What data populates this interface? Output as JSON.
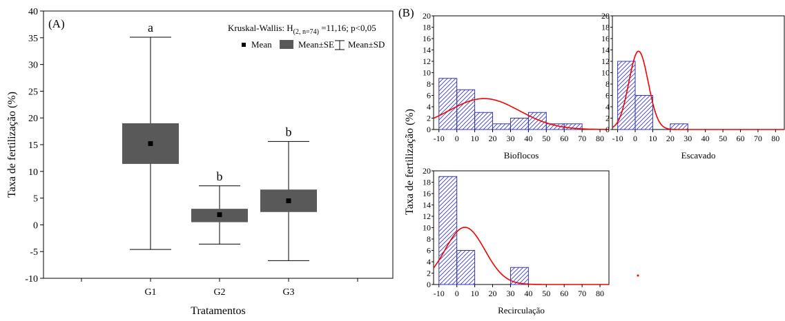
{
  "chart_data": [
    {
      "type": "box",
      "panel_label": "(A)",
      "ylabel": "Taxa de fertilização (%)",
      "xlabel": "Tratamentos",
      "ylim": [
        -10,
        40
      ],
      "yticks": [
        -10,
        -5,
        0,
        5,
        10,
        15,
        20,
        25,
        30,
        35,
        40
      ],
      "grid": false,
      "stat_text": {
        "prefix": "Kruskal-Wallis: H",
        "subscript": "(2, n=74)",
        "suffix": " =11,16; p<0,05"
      },
      "legend": {
        "placement": "top-right",
        "mean": "Mean",
        "se": "Mean±SE",
        "sd": "Mean±SD"
      },
      "box_color": "#595959",
      "categories": [
        "G1",
        "G2",
        "G3"
      ],
      "groups": [
        {
          "name": "G1",
          "mean": 15.2,
          "se_low": 11.4,
          "se_high": 19.0,
          "sd_low": -4.6,
          "sd_high": 35.1,
          "letter": "a"
        },
        {
          "name": "G2",
          "mean": 1.9,
          "se_low": 0.5,
          "se_high": 3.0,
          "sd_low": -3.6,
          "sd_high": 7.3,
          "letter": "b"
        },
        {
          "name": "G3",
          "mean": 4.5,
          "se_low": 2.4,
          "se_high": 6.6,
          "sd_low": -6.7,
          "sd_high": 15.6,
          "letter": "b"
        }
      ]
    },
    {
      "type": "histogram",
      "panel_label": "(B)",
      "ylabel": "Taxa de fertilização (%)",
      "xticks": [
        -10,
        0,
        10,
        20,
        30,
        40,
        50,
        60,
        70,
        80
      ],
      "xlim": [
        -13,
        85
      ],
      "ylim": [
        0,
        20
      ],
      "yticks": [
        0,
        2,
        4,
        6,
        8,
        10,
        12,
        14,
        16,
        18,
        20
      ],
      "bin_width": 10,
      "bar_color": "#3333bb",
      "curve_color": "#ee0000",
      "panels": [
        {
          "title": "Bioflocos",
          "bins": [
            {
              "x0": -10,
              "count": 9
            },
            {
              "x0": 0,
              "count": 7
            },
            {
              "x0": 10,
              "count": 3
            },
            {
              "x0": 20,
              "count": 1
            },
            {
              "x0": 30,
              "count": 2
            },
            {
              "x0": 40,
              "count": 3
            },
            {
              "x0": 50,
              "count": 1
            },
            {
              "x0": 60,
              "count": 1
            }
          ],
          "curve": {
            "mean": 15.2,
            "sd": 19.8,
            "n": 27
          }
        },
        {
          "title": "Escavado",
          "bins": [
            {
              "x0": -10,
              "count": 12
            },
            {
              "x0": 0,
              "count": 6
            },
            {
              "x0": 20,
              "count": 1
            }
          ],
          "curve": {
            "mean": 1.9,
            "sd": 5.5,
            "n": 19
          }
        },
        {
          "title": "Recirculação",
          "bins": [
            {
              "x0": -10,
              "count": 19
            },
            {
              "x0": 0,
              "count": 6
            },
            {
              "x0": 30,
              "count": 3
            }
          ],
          "curve": {
            "mean": 4.5,
            "sd": 11.1,
            "n": 28
          }
        }
      ]
    }
  ]
}
